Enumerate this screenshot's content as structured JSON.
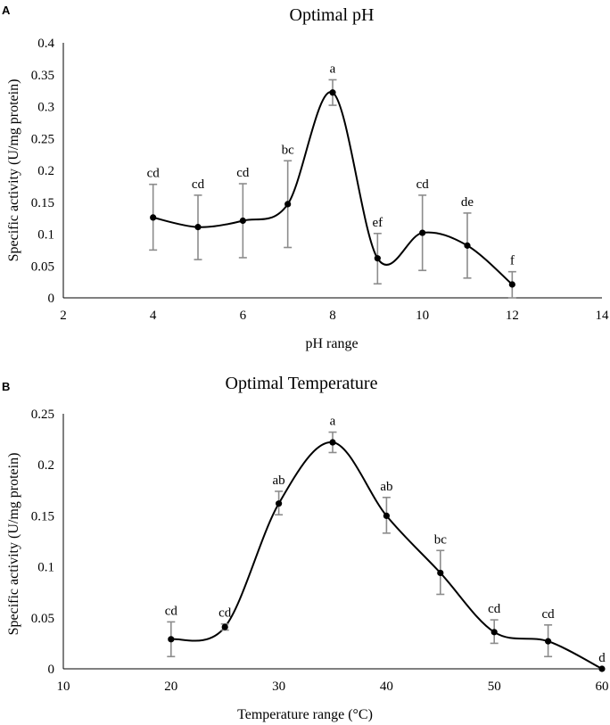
{
  "chart_data": [
    {
      "panel": "A",
      "type": "line",
      "title": "Optimal pH",
      "xlabel": "pH range",
      "ylabel": "Specific activity (U/mg protein)",
      "xlim": [
        2,
        14
      ],
      "ylim": [
        0,
        0.4
      ],
      "xticks": [
        2,
        4,
        6,
        8,
        10,
        12,
        14
      ],
      "yticks": [
        0,
        0.05,
        0.1,
        0.15,
        0.2,
        0.25,
        0.3,
        0.35,
        0.4
      ],
      "ytick_labels": [
        "0",
        "0.05",
        "0.1",
        "0.15",
        "0.2",
        "0.25",
        "0.3",
        "0.35",
        "0.4"
      ],
      "x": [
        4,
        5,
        6,
        7,
        8,
        9,
        10,
        11,
        12
      ],
      "y": [
        0.126,
        0.111,
        0.121,
        0.147,
        0.322,
        0.062,
        0.102,
        0.082,
        0.021
      ],
      "err_low": [
        0.075,
        0.06,
        0.063,
        0.079,
        0.302,
        0.022,
        0.043,
        0.031,
        0.0
      ],
      "err_high": [
        0.178,
        0.161,
        0.179,
        0.215,
        0.342,
        0.101,
        0.161,
        0.133,
        0.041
      ],
      "sig": [
        "cd",
        "cd",
        "cd",
        "bc",
        "a",
        "ef",
        "cd",
        "de",
        "f"
      ]
    },
    {
      "panel": "B",
      "type": "line",
      "title": "Optimal Temperature",
      "xlabel": "Temperature range (°C)",
      "ylabel": "Specific activity (U/mg protein)",
      "xlim": [
        10,
        60
      ],
      "ylim": [
        0,
        0.25
      ],
      "xticks": [
        10,
        20,
        30,
        40,
        50,
        60
      ],
      "yticks": [
        0,
        0.05,
        0.1,
        0.15,
        0.2,
        0.25
      ],
      "ytick_labels": [
        "0",
        "0.05",
        "0.1",
        "0.15",
        "0.2",
        "0.25"
      ],
      "x": [
        20,
        25,
        30,
        35,
        40,
        45,
        50,
        55,
        60
      ],
      "y": [
        0.029,
        0.041,
        0.162,
        0.222,
        0.15,
        0.094,
        0.036,
        0.027,
        0.0
      ],
      "err_low": [
        0.012,
        0.038,
        0.151,
        0.212,
        0.133,
        0.073,
        0.025,
        0.012,
        0.0
      ],
      "err_high": [
        0.046,
        0.044,
        0.174,
        0.232,
        0.168,
        0.116,
        0.048,
        0.043,
        0.0
      ],
      "sig": [
        "cd",
        "cd",
        "ab",
        "a",
        "ab",
        "bc",
        "cd",
        "cd",
        "d"
      ]
    }
  ]
}
